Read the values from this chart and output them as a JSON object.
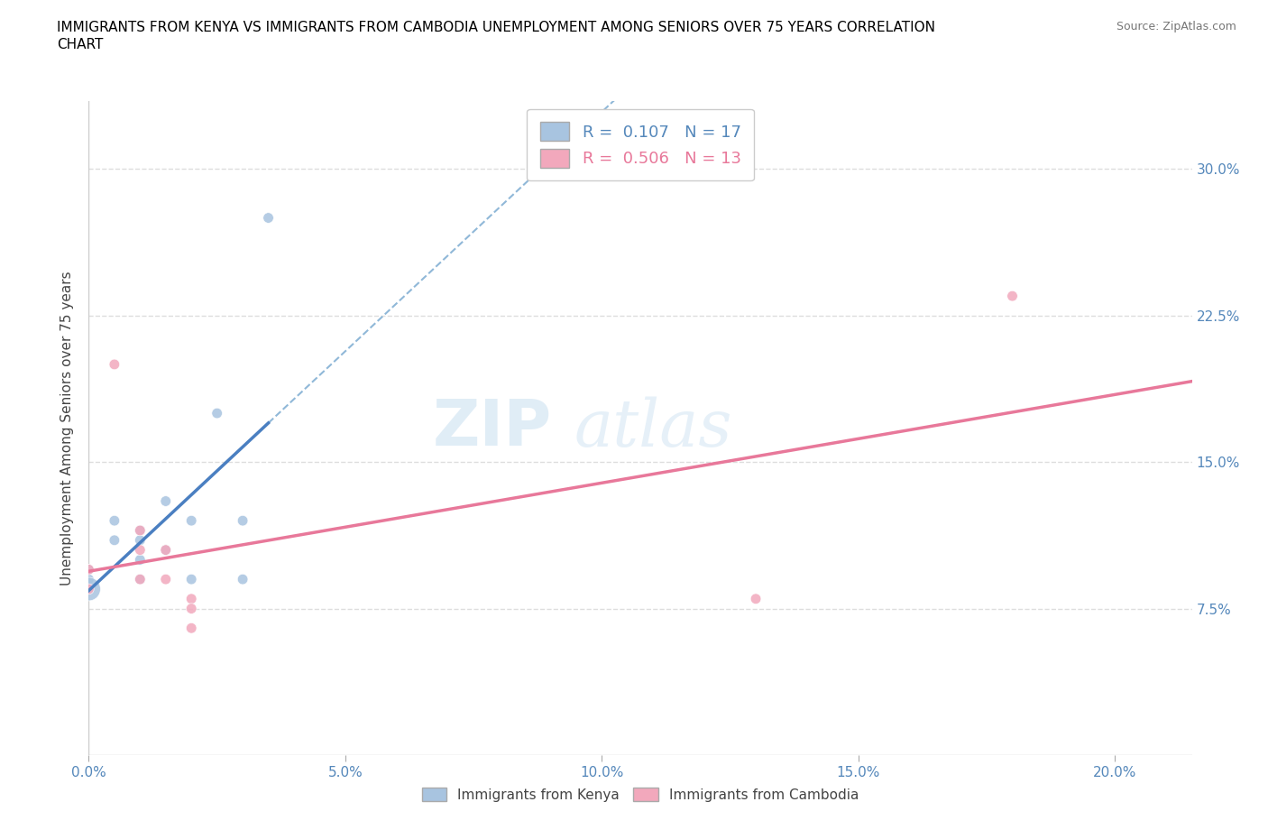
{
  "title_line1": "IMMIGRANTS FROM KENYA VS IMMIGRANTS FROM CAMBODIA UNEMPLOYMENT AMONG SENIORS OVER 75 YEARS CORRELATION",
  "title_line2": "CHART",
  "source": "Source: ZipAtlas.com",
  "xlim": [
    0.0,
    0.215
  ],
  "ylim": [
    0.0,
    0.335
  ],
  "ylabel": "Unemployment Among Seniors over 75 years",
  "kenya_color": "#a8c4e0",
  "cambodia_color": "#f2a8bc",
  "kenya_line_color": "#4a7fc1",
  "cambodia_line_color": "#e8789a",
  "dash_line_color": "#90b8d8",
  "legend_kenya_R": "0.107",
  "legend_kenya_N": "17",
  "legend_cambodia_R": "0.506",
  "legend_cambodia_N": "13",
  "kenya_x": [
    0.0,
    0.0,
    0.0,
    0.005,
    0.005,
    0.01,
    0.01,
    0.01,
    0.01,
    0.015,
    0.015,
    0.02,
    0.02,
    0.025,
    0.03,
    0.03,
    0.035
  ],
  "kenya_y": [
    0.095,
    0.09,
    0.085,
    0.12,
    0.11,
    0.115,
    0.11,
    0.1,
    0.09,
    0.13,
    0.105,
    0.12,
    0.09,
    0.175,
    0.12,
    0.09,
    0.275
  ],
  "cambodia_x": [
    0.0,
    0.0,
    0.005,
    0.01,
    0.01,
    0.01,
    0.015,
    0.015,
    0.02,
    0.02,
    0.02,
    0.13,
    0.18
  ],
  "cambodia_y": [
    0.095,
    0.085,
    0.2,
    0.115,
    0.105,
    0.09,
    0.105,
    0.09,
    0.08,
    0.075,
    0.065,
    0.08,
    0.235
  ],
  "kenya_sizes": [
    70,
    70,
    350,
    70,
    70,
    70,
    70,
    70,
    70,
    70,
    70,
    70,
    70,
    70,
    70,
    70,
    70
  ],
  "cambodia_sizes": [
    70,
    70,
    70,
    70,
    70,
    70,
    70,
    70,
    70,
    70,
    70,
    70,
    70
  ],
  "watermark_zip": "ZIP",
  "watermark_atlas": "atlas",
  "grid_color": "#dddddd",
  "ytick_vals": [
    0.075,
    0.15,
    0.225,
    0.3
  ],
  "xtick_vals": [
    0.0,
    0.05,
    0.1,
    0.15,
    0.2
  ]
}
